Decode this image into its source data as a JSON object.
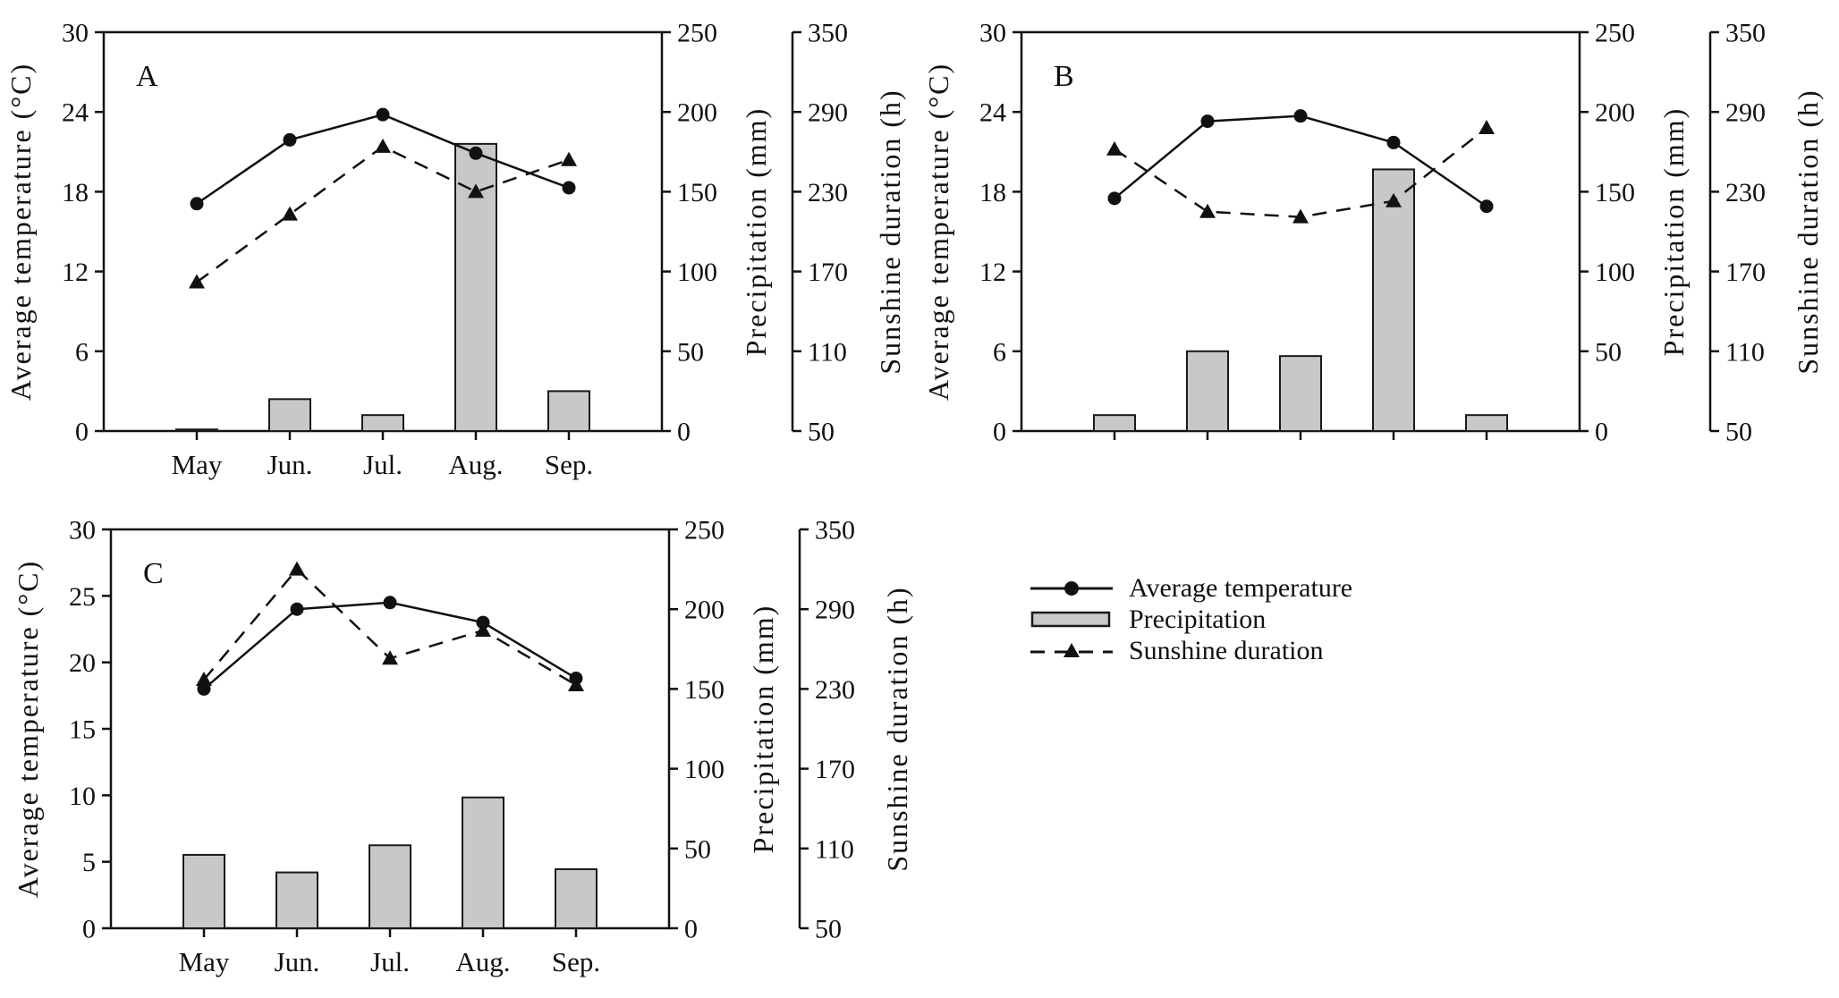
{
  "figure": {
    "background": "#ffffff",
    "legend": {
      "items": [
        {
          "label": "Average temperature",
          "marker": "solid-line-filled-circle"
        },
        {
          "label": "Precipitation",
          "marker": "gray-bar"
        },
        {
          "label": "Sunshine duration",
          "marker": "dashed-line-filled-triangle"
        }
      ]
    }
  },
  "chart_data": {
    "type": "combo",
    "description": "Three-panel climate figure (A, B, C). Each panel: monthly average temperature (solid line with filled circles, left axis), precipitation (gray bars, first right axis) and sunshine duration (dashed line with filled triangles, second right axis) from May to September.",
    "categories": [
      "May",
      "Jun.",
      "Jul.",
      "Aug.",
      "Sep."
    ],
    "axes": {
      "temperature": {
        "label": "Average temperature (°C)",
        "min": 0,
        "max": 30
      },
      "precipitation": {
        "label": "Precipitation (mm)",
        "min": 0,
        "max": 250,
        "ticks": [
          0,
          50,
          100,
          150,
          200,
          250
        ]
      },
      "sunshine": {
        "label": "Sunshine duration (h)",
        "min": 50,
        "max": 350,
        "ticks": [
          50,
          110,
          170,
          230,
          290,
          350
        ]
      }
    },
    "legend_position": "bottom-right-quadrant",
    "grid": false,
    "panels": [
      {
        "label": "A",
        "show_month_labels": true,
        "temperature_ticks": [
          0,
          6,
          12,
          18,
          24,
          30
        ],
        "series": [
          {
            "name": "Average temperature",
            "type": "line",
            "axis": "temperature",
            "values": [
              17.1,
              21.9,
              23.8,
              20.9,
              18.3
            ]
          },
          {
            "name": "Precipitation",
            "type": "bar",
            "axis": "precipitation",
            "values": [
              1,
              20,
              10,
              180,
              25
            ]
          },
          {
            "name": "Sunshine duration",
            "type": "dashed-line",
            "axis": "sunshine",
            "values": [
              162,
              213,
              264,
              230,
              254
            ]
          }
        ]
      },
      {
        "label": "B",
        "show_month_labels": false,
        "temperature_ticks": [
          0,
          6,
          12,
          18,
          24,
          30
        ],
        "series": [
          {
            "name": "Average temperature",
            "type": "line",
            "axis": "temperature",
            "values": [
              17.5,
              23.3,
              23.7,
              21.7,
              16.9
            ]
          },
          {
            "name": "Precipitation",
            "type": "bar",
            "axis": "precipitation",
            "values": [
              10,
              50,
              47,
              164,
              10
            ]
          },
          {
            "name": "Sunshine duration",
            "type": "dashed-line",
            "axis": "sunshine",
            "values": [
              262,
              215,
              211,
              223,
              278
            ]
          }
        ]
      },
      {
        "label": "C",
        "show_month_labels": true,
        "temperature_ticks": [
          0,
          5,
          10,
          15,
          20,
          25,
          30
        ],
        "series": [
          {
            "name": "Average temperature",
            "type": "line",
            "axis": "temperature",
            "values": [
              18.0,
              24.0,
              24.5,
              23.0,
              18.8
            ]
          },
          {
            "name": "Precipitation",
            "type": "bar",
            "axis": "precipitation",
            "values": [
              46,
              35,
              52,
              82,
              37
            ]
          },
          {
            "name": "Sunshine duration",
            "type": "dashed-line",
            "axis": "sunshine",
            "values": [
              237,
              320,
              253,
              274,
              233
            ]
          }
        ]
      }
    ],
    "colors": {
      "bar_fill": "#c8c8c8",
      "line": "#111111",
      "bar_stroke": "#1a1a1a"
    }
  }
}
